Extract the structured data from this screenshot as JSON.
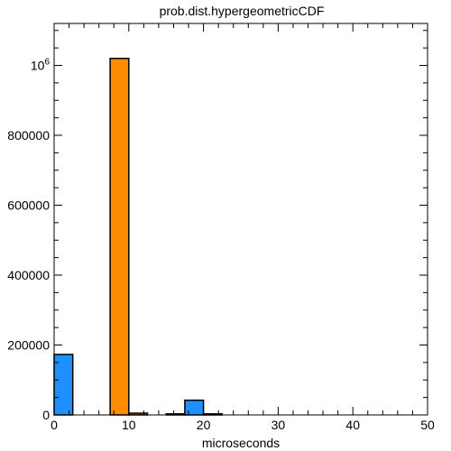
{
  "chart_data": {
    "type": "bar",
    "title": "prob.dist.hypergeometricCDF",
    "xlabel": "microseconds",
    "ylabel": "",
    "xlim": [
      0,
      50
    ],
    "ylim": [
      0,
      1120000
    ],
    "grid": false,
    "x_ticks": [
      0,
      10,
      20,
      30,
      40,
      50
    ],
    "x_tick_labels": [
      "0",
      "10",
      "20",
      "30",
      "40",
      "50"
    ],
    "y_ticks": [
      0,
      200000,
      400000,
      600000,
      800000,
      1000000
    ],
    "y_tick_labels": [
      "0",
      "200000",
      "400000",
      "600000",
      "800000",
      "10^6"
    ],
    "bin_width": 2.5,
    "bars": [
      {
        "x_start": 0.0,
        "x_end": 2.5,
        "value": 173000,
        "color": "#1e90ff"
      },
      {
        "x_start": 7.5,
        "x_end": 10.0,
        "value": 1020000,
        "color": "#ff8c00"
      },
      {
        "x_start": 10.0,
        "x_end": 12.5,
        "value": 5000,
        "color": "#ff8c00"
      },
      {
        "x_start": 15.0,
        "x_end": 17.5,
        "value": 3000,
        "color": "#1e90ff"
      },
      {
        "x_start": 17.5,
        "x_end": 20.0,
        "value": 42000,
        "color": "#1e90ff"
      },
      {
        "x_start": 20.0,
        "x_end": 22.5,
        "value": 3000,
        "color": "#ff8c00"
      }
    ],
    "colors": {
      "blue": "#1e90ff",
      "orange": "#ff8c00"
    }
  }
}
